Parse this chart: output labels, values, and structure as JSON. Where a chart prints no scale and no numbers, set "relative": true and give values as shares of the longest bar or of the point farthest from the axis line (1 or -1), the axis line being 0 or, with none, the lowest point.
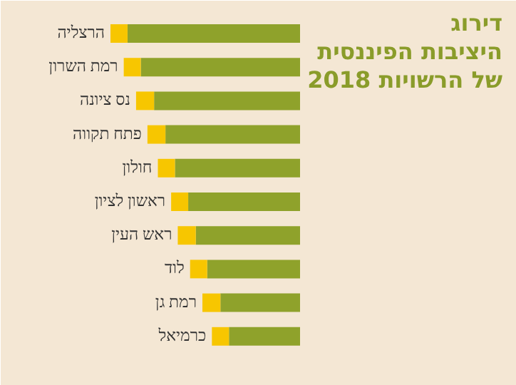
{
  "chart_data": {
    "type": "bar",
    "orientation": "horizontal",
    "stacked": true,
    "relative": true,
    "title": "דירוג\nהיציבות הפיננסית\nשל הרשויות 2018",
    "categories": [
      "הרצליה",
      "רמת השרון",
      "נס ציונה",
      "פתח תקווה",
      "חולון",
      "ראשון לציון",
      "ראש העין",
      "לוד",
      "רמת גן",
      "כרמיאל"
    ],
    "series": [
      {
        "color": "#8fa22b",
        "values": [
          0.91,
          0.84,
          0.77,
          0.71,
          0.66,
          0.59,
          0.55,
          0.49,
          0.42,
          0.375
        ]
      },
      {
        "color": "#f7c600",
        "values": [
          0.09,
          0.09,
          0.095,
          0.095,
          0.09,
          0.09,
          0.095,
          0.09,
          0.095,
          0.09
        ]
      }
    ]
  }
}
